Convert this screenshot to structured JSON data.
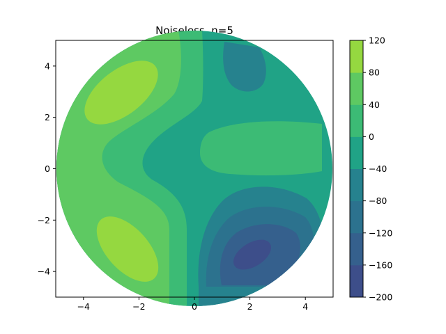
{
  "chart_data": {
    "type": "contour",
    "title": "Noiseless, n=5",
    "xlabel": "",
    "ylabel": "",
    "xlim": [
      -5,
      5
    ],
    "ylim": [
      -5,
      5
    ],
    "x_ticks": [
      -4,
      -2,
      0,
      2,
      4
    ],
    "y_ticks": [
      -4,
      -2,
      0,
      2,
      4
    ],
    "domain_shape": "disk of radius 5 centred at origin",
    "colorbar": {
      "levels": [
        -200,
        -160,
        -120,
        -80,
        -40,
        0,
        40,
        80,
        120
      ],
      "colors": [
        "#3d4e8a",
        "#35608d",
        "#2c728e",
        "#26828e",
        "#20a386",
        "#3cbb75",
        "#5ec962",
        "#95d840"
      ]
    },
    "features": [
      {
        "kind": "maximum",
        "x": -2.8,
        "y": 2.5,
        "band": "80 to 120"
      },
      {
        "kind": "maximum",
        "x": -2.3,
        "y": -3.0,
        "band": "80 to 120"
      },
      {
        "kind": "minimum",
        "x": 2.5,
        "y": -3.2,
        "band": "-200 to -160"
      },
      {
        "kind": "minimum",
        "x": 1.5,
        "y": 4.0,
        "band": "-80 to -40"
      }
    ]
  }
}
